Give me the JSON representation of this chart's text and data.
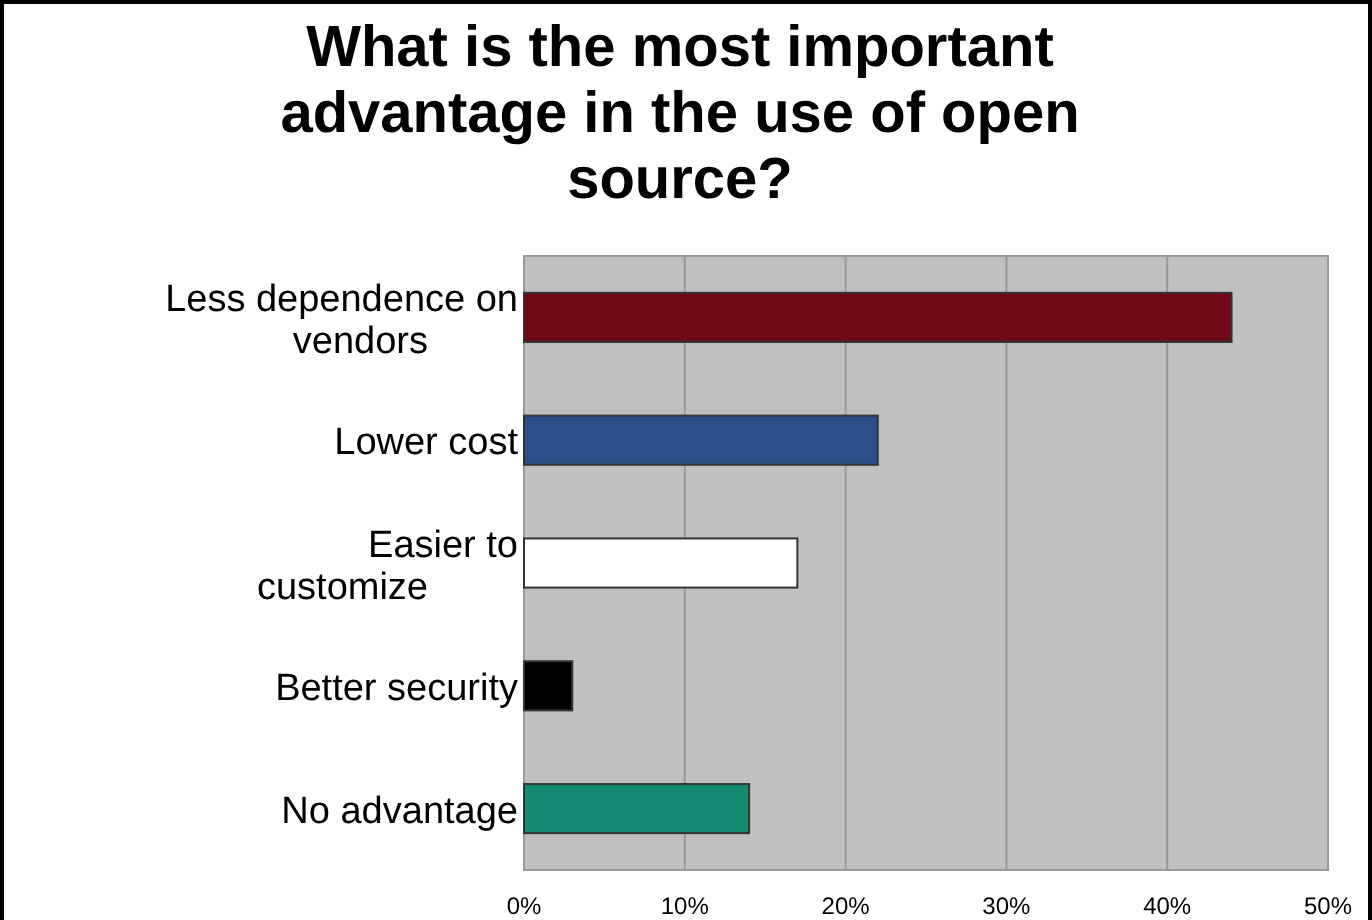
{
  "chart_data": {
    "type": "bar",
    "orientation": "horizontal",
    "title": "What is the most important advantage in the use of open source?",
    "categories": [
      "Less dependence on vendors",
      "Lower cost",
      "Easier to customize",
      "Better security",
      "No advantage"
    ],
    "values": [
      44,
      22,
      17,
      3,
      14
    ],
    "colors": [
      "#6e0914",
      "#2c4f88",
      "#ffffff",
      "#000000",
      "#148a72"
    ],
    "xlim": [
      0,
      50
    ],
    "xticks": [
      {
        "value": 0,
        "label": "0%"
      },
      {
        "value": 10,
        "label": "10%"
      },
      {
        "value": 20,
        "label": "20%"
      },
      {
        "value": 30,
        "label": "30%"
      },
      {
        "value": 40,
        "label": "40%"
      },
      {
        "value": 50,
        "label": "50%"
      }
    ],
    "grid": "x"
  }
}
